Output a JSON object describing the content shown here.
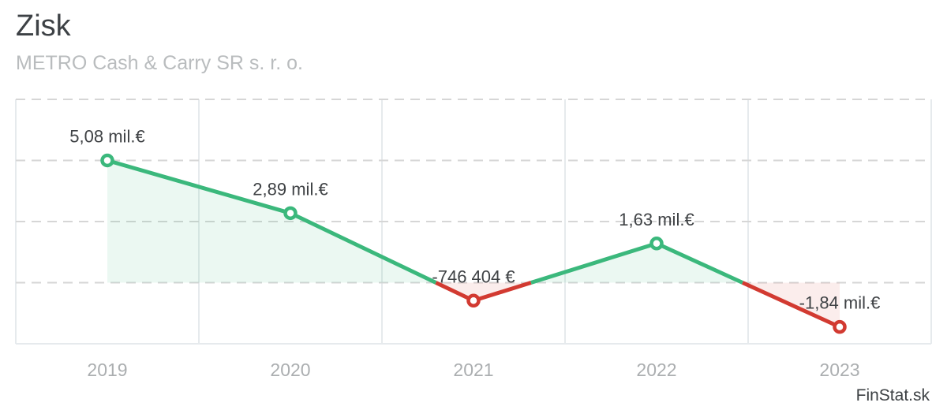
{
  "header": {
    "title": "Zisk",
    "subtitle": "METRO Cash & Carry SR s. r. o."
  },
  "watermark": "FinStat.sk",
  "chart_data": {
    "type": "line",
    "title": "Zisk",
    "subtitle": "METRO Cash & Carry SR s. r. o.",
    "x_categories": [
      "2019",
      "2020",
      "2021",
      "2022",
      "2023"
    ],
    "series": [
      {
        "name": "Zisk",
        "values_mil_eur": [
          5.08,
          2.89,
          -0.746404,
          1.63,
          -1.84
        ],
        "point_labels": [
          "5,08 mil.€",
          "2,89 mil.€",
          "-746 404 €",
          "1,63 mil.€",
          "-1,84 mil.€"
        ]
      }
    ],
    "ylim_mil_eur": [
      -2.54,
      7.62
    ],
    "zero_baseline": true,
    "grid": {
      "horizontal": "dashed",
      "vertical": "solid"
    },
    "legend": "none",
    "colors": {
      "positive_line": "#3bb87c",
      "negative_line": "#d23a31",
      "positive_fill": "rgba(59,184,124,0.10)",
      "negative_fill": "rgba(210,58,49,0.09)",
      "grid_dash": "#d6d6d6",
      "grid_solid": "#e6eaed",
      "marker_fill": "#ffffff",
      "label_text": "#3f4245",
      "axis_text": "#abaeb0"
    }
  }
}
